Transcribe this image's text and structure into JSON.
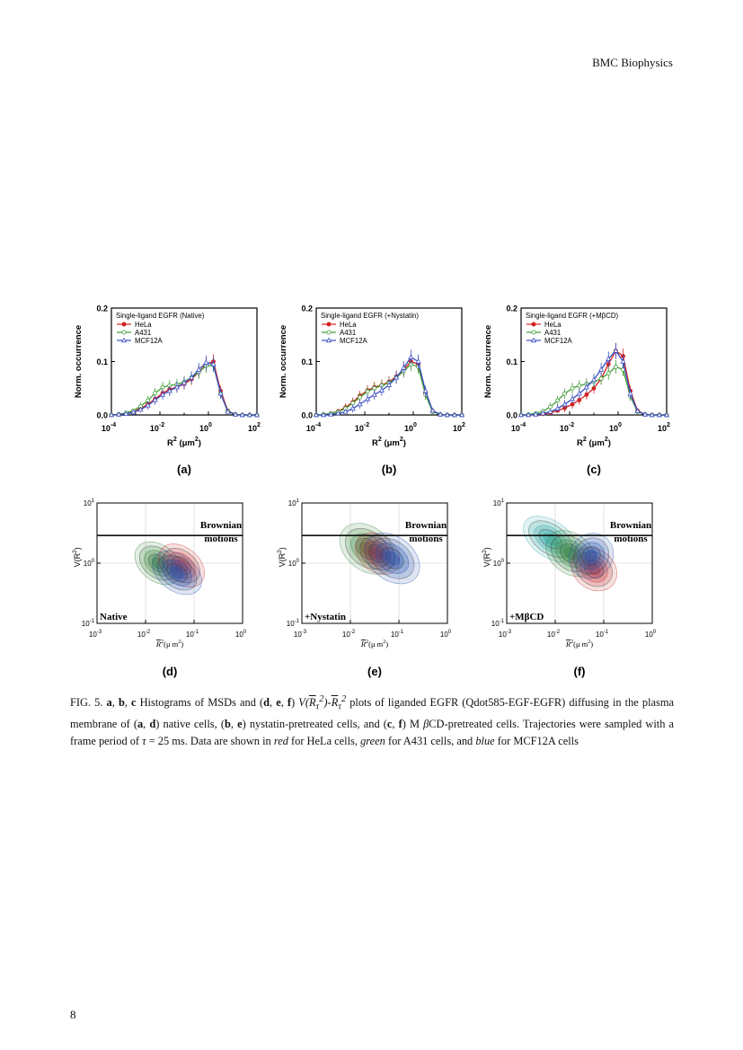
{
  "header": {
    "journal": "BMC Biophysics"
  },
  "footer": {
    "page_number": "8"
  },
  "colors": {
    "HeLa": "#d42020",
    "A431": "#3f9c35",
    "MCF12A": "#3a4fc4"
  },
  "histograms": {
    "y_axis_label": "Norm. occurrence",
    "y_ticks": [
      "0.0",
      "0.1",
      "0.2"
    ],
    "x_tick_bases": [
      "10",
      "10",
      "10",
      "10"
    ],
    "x_tick_exps": [
      "-4",
      "-2",
      "0",
      "2"
    ],
    "x_label": {
      "base": "R",
      "sup": "2",
      "unit": " (μm",
      "unit_sup": "2",
      "close": ")"
    },
    "legend": [
      "HeLa",
      "A431",
      "MCF12A"
    ],
    "panels": [
      {
        "title": "Single-ligand EGFR (Native)",
        "label": "(a)"
      },
      {
        "title": "Single-ligand EGFR (+Nystatin)",
        "label": "(b)"
      },
      {
        "title": "Single-ligand EGFR (+MβCD)",
        "label": "(c)"
      }
    ]
  },
  "variance_plots": {
    "y_label": {
      "base": "V(R",
      "sup": "2",
      "close": ")"
    },
    "y_tick_exps": [
      "1",
      "0",
      "-1"
    ],
    "x_tick_exps": [
      "-3",
      "-2",
      "-1",
      "0"
    ],
    "tick_base": "10",
    "x_label": {
      "base": "R",
      "sup": "2",
      "unit": "(μ m",
      "unit_sup": "2",
      "close": ")"
    },
    "annotation": [
      "Brownian",
      "motions"
    ],
    "panels": [
      {
        "condition": "Native",
        "label": "(d)"
      },
      {
        "condition": "+Nystatin",
        "label": "(e)"
      },
      {
        "condition": "+MβCD",
        "label": "(f)"
      }
    ]
  },
  "caption": {
    "fig": "FIG. 5.",
    "t1": " Histograms of MSDs and (",
    "t2": ") ",
    "t3": " plots of liganded EGFR (Qdot585-EGF-EGFR) diffusing in the plasma membrane of (",
    "t4": ") native cells, (",
    "t5": ") nystatin-pretreated cells, and (",
    "t6": ") M ",
    "t7": "CD-pretreated cells. Trajectories were sampled with a frame period of ",
    "t8": " = 25 ms. Data are shown in ",
    "red": "red",
    "t9": " for HeLa cells, ",
    "green": "green",
    "t10": " for A431 cells, and ",
    "blue": "blue",
    "t11": " for MCF12A cells",
    "letters": [
      "a",
      "b",
      "c",
      "d",
      "e",
      "f"
    ],
    "comma": ", ",
    "beta": "β",
    "tau": "τ",
    "var_expr": {
      "V": "V",
      "R": "R",
      "tau": "τ",
      "sup": "2",
      "dash": "-"
    }
  },
  "chart_data": [
    {
      "type": "line",
      "panel": "a",
      "title": "Single-ligand EGFR (Native)",
      "xlabel": "R2 (μm2)",
      "ylabel": "Norm. occurrence",
      "x_scale": "log",
      "xlim": [
        0.0001,
        100
      ],
      "ylim": [
        0,
        0.2
      ],
      "x": [
        0.0001,
        0.0002,
        0.0004,
        0.0008,
        0.0016,
        0.0032,
        0.0063,
        0.013,
        0.025,
        0.05,
        0.1,
        0.2,
        0.4,
        0.8,
        1.6,
        3.2,
        6.3,
        13,
        25,
        50,
        100
      ],
      "series": [
        {
          "name": "HeLa",
          "values": [
            0.0,
            0.001,
            0.003,
            0.006,
            0.012,
            0.02,
            0.03,
            0.041,
            0.048,
            0.052,
            0.058,
            0.067,
            0.08,
            0.095,
            0.1,
            0.045,
            0.008,
            0.001,
            0.0,
            0.0,
            0.0
          ]
        },
        {
          "name": "A431",
          "values": [
            0.0,
            0.001,
            0.004,
            0.008,
            0.016,
            0.027,
            0.041,
            0.052,
            0.055,
            0.057,
            0.062,
            0.07,
            0.08,
            0.092,
            0.093,
            0.04,
            0.007,
            0.001,
            0.0,
            0.0,
            0.0
          ]
        },
        {
          "name": "MCF12A",
          "values": [
            0.0,
            0.001,
            0.002,
            0.005,
            0.01,
            0.018,
            0.028,
            0.038,
            0.045,
            0.052,
            0.06,
            0.07,
            0.085,
            0.098,
            0.095,
            0.04,
            0.006,
            0.001,
            0.0,
            0.0,
            0.0
          ]
        }
      ]
    },
    {
      "type": "line",
      "panel": "b",
      "title": "Single-ligand EGFR (+Nystatin)",
      "xlabel": "R2 (μm2)",
      "ylabel": "Norm. occurrence",
      "x_scale": "log",
      "xlim": [
        0.0001,
        100
      ],
      "ylim": [
        0,
        0.2
      ],
      "x": [
        0.0001,
        0.0002,
        0.0004,
        0.0008,
        0.0016,
        0.0032,
        0.0063,
        0.013,
        0.025,
        0.05,
        0.1,
        0.2,
        0.4,
        0.8,
        1.6,
        3.2,
        6.3,
        13,
        25,
        50,
        100
      ],
      "series": [
        {
          "name": "HeLa",
          "values": [
            0.0,
            0.001,
            0.003,
            0.007,
            0.014,
            0.024,
            0.036,
            0.046,
            0.052,
            0.056,
            0.062,
            0.072,
            0.085,
            0.1,
            0.095,
            0.04,
            0.007,
            0.001,
            0.0,
            0.0,
            0.0
          ]
        },
        {
          "name": "A431",
          "values": [
            0.0,
            0.001,
            0.003,
            0.006,
            0.012,
            0.022,
            0.033,
            0.044,
            0.05,
            0.055,
            0.06,
            0.07,
            0.082,
            0.095,
            0.09,
            0.038,
            0.006,
            0.001,
            0.0,
            0.0,
            0.0
          ]
        },
        {
          "name": "MCF12A",
          "values": [
            0.0,
            0.0,
            0.001,
            0.003,
            0.006,
            0.012,
            0.02,
            0.03,
            0.038,
            0.046,
            0.056,
            0.07,
            0.088,
            0.108,
            0.1,
            0.045,
            0.008,
            0.001,
            0.0,
            0.0,
            0.0
          ]
        }
      ]
    },
    {
      "type": "line",
      "panel": "c",
      "title": "Single-ligand EGFR (+MβCD)",
      "xlabel": "R2 (μm2)",
      "ylabel": "Norm. occurrence",
      "x_scale": "log",
      "xlim": [
        0.0001,
        100
      ],
      "ylim": [
        0,
        0.2
      ],
      "x": [
        0.0001,
        0.0002,
        0.0004,
        0.0008,
        0.0016,
        0.0032,
        0.0063,
        0.013,
        0.025,
        0.05,
        0.1,
        0.2,
        0.4,
        0.8,
        1.6,
        3.2,
        6.3,
        13,
        25,
        50,
        100
      ],
      "series": [
        {
          "name": "HeLa",
          "values": [
            0.0,
            0.0,
            0.001,
            0.002,
            0.004,
            0.008,
            0.013,
            0.02,
            0.028,
            0.038,
            0.05,
            0.068,
            0.095,
            0.12,
            0.11,
            0.045,
            0.008,
            0.001,
            0.0,
            0.0,
            0.0
          ]
        },
        {
          "name": "A431",
          "values": [
            0.0,
            0.001,
            0.003,
            0.007,
            0.015,
            0.027,
            0.04,
            0.05,
            0.055,
            0.058,
            0.062,
            0.068,
            0.078,
            0.09,
            0.085,
            0.035,
            0.006,
            0.001,
            0.0,
            0.0,
            0.0
          ]
        },
        {
          "name": "MCF12A",
          "values": [
            0.0,
            0.0,
            0.001,
            0.003,
            0.006,
            0.012,
            0.02,
            0.03,
            0.04,
            0.052,
            0.066,
            0.085,
            0.105,
            0.12,
            0.1,
            0.04,
            0.007,
            0.001,
            0.0,
            0.0,
            0.0
          ]
        }
      ]
    }
  ]
}
